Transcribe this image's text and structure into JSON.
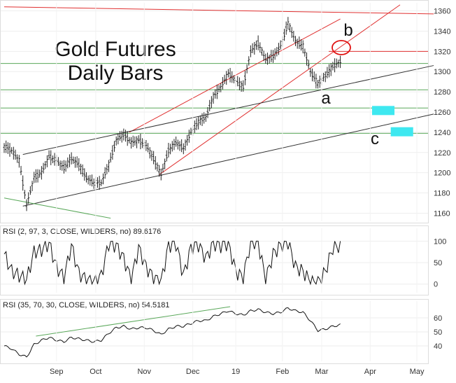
{
  "chart_data": [
    {
      "type": "line",
      "title": "Gold Futures",
      "subtitle": "Daily Bars",
      "y_ticks": [
        1160,
        1180,
        1200,
        1220,
        1240,
        1260,
        1280,
        1300,
        1320,
        1340,
        1360
      ],
      "ylim": [
        1152,
        1368
      ],
      "x_ticks": [
        "Sep",
        "Oct",
        "Nov",
        "Dec",
        "19",
        "Feb",
        "Mar",
        "Apr",
        "May"
      ],
      "series": [
        {
          "x": [
            0,
            4,
            8,
            12,
            16,
            20,
            24,
            28,
            32,
            36,
            40,
            44,
            48,
            52,
            56,
            60,
            64,
            68,
            72,
            76,
            80,
            84,
            88,
            92,
            96,
            100,
            104,
            108,
            112,
            116,
            120,
            124,
            128,
            132,
            136,
            140,
            144,
            148,
            152,
            156,
            160,
            164,
            168,
            172,
            176,
            180
          ],
          "values": [
            1226,
            1222,
            1212,
            1168,
            1195,
            1200,
            1216,
            1212,
            1205,
            1214,
            1208,
            1195,
            1190,
            1190,
            1208,
            1232,
            1238,
            1230,
            1232,
            1227,
            1214,
            1198,
            1222,
            1230,
            1224,
            1240,
            1250,
            1255,
            1275,
            1285,
            1298,
            1291,
            1285,
            1320,
            1328,
            1312,
            1315,
            1325,
            1348,
            1330,
            1325,
            1300,
            1288,
            1296,
            1305,
            1310
          ]
        }
      ],
      "annotations": [
        "a",
        "b",
        "c"
      ],
      "horizontal_levels": [
        1308,
        1282,
        1264,
        1239
      ],
      "red_level": 1320,
      "target_boxes": [
        {
          "x0": 197,
          "x1": 209,
          "y0": 1257,
          "y1": 1266
        },
        {
          "x0": 207,
          "x1": 219,
          "y0": 1236,
          "y1": 1245
        }
      ],
      "grid": true
    },
    {
      "type": "line",
      "title": "RSI (2, 97, 3, CLOSE, WILDERS, no) 89.6176",
      "y_ticks": [
        0,
        50,
        100
      ],
      "ylim": [
        -20,
        130
      ],
      "series": [
        {
          "x": [
            0,
            4,
            8,
            12,
            16,
            20,
            24,
            28,
            32,
            36,
            40,
            44,
            48,
            52,
            56,
            60,
            64,
            68,
            72,
            76,
            80,
            84,
            88,
            92,
            96,
            100,
            104,
            108,
            112,
            116,
            120,
            124,
            128,
            132,
            136,
            140,
            144,
            148,
            152,
            156,
            160,
            164,
            168,
            172,
            176,
            180
          ],
          "values": [
            70,
            30,
            20,
            10,
            75,
            80,
            95,
            40,
            15,
            90,
            25,
            10,
            5,
            20,
            95,
            90,
            60,
            10,
            85,
            40,
            15,
            5,
            90,
            95,
            20,
            85,
            92,
            60,
            95,
            90,
            96,
            30,
            15,
            100,
            98,
            10,
            70,
            90,
            98,
            40,
            30,
            5,
            3,
            30,
            85,
            90
          ]
        }
      ],
      "grid": true
    },
    {
      "type": "line",
      "title": "RSI (35, 70, 30, CLOSE, WILDERS, no) 54.5181",
      "y_ticks": [
        40,
        50,
        60
      ],
      "ylim": [
        29,
        72
      ],
      "series": [
        {
          "x": [
            0,
            4,
            8,
            12,
            16,
            20,
            24,
            28,
            32,
            36,
            40,
            44,
            48,
            52,
            56,
            60,
            64,
            68,
            72,
            76,
            80,
            84,
            88,
            92,
            96,
            100,
            104,
            108,
            112,
            116,
            120,
            124,
            128,
            132,
            136,
            140,
            144,
            148,
            152,
            156,
            160,
            164,
            168,
            172,
            176,
            180
          ],
          "values": [
            40,
            38,
            34,
            32,
            41,
            44,
            46,
            44,
            43,
            46,
            45,
            44,
            43,
            44,
            49,
            53,
            54,
            52,
            53,
            53,
            51,
            48,
            52,
            54,
            54,
            56,
            58,
            58,
            61,
            63,
            65,
            63,
            62,
            65,
            66,
            64,
            63,
            64,
            67,
            65,
            64,
            58,
            51,
            52,
            54,
            55
          ]
        }
      ],
      "grid": true
    }
  ]
}
